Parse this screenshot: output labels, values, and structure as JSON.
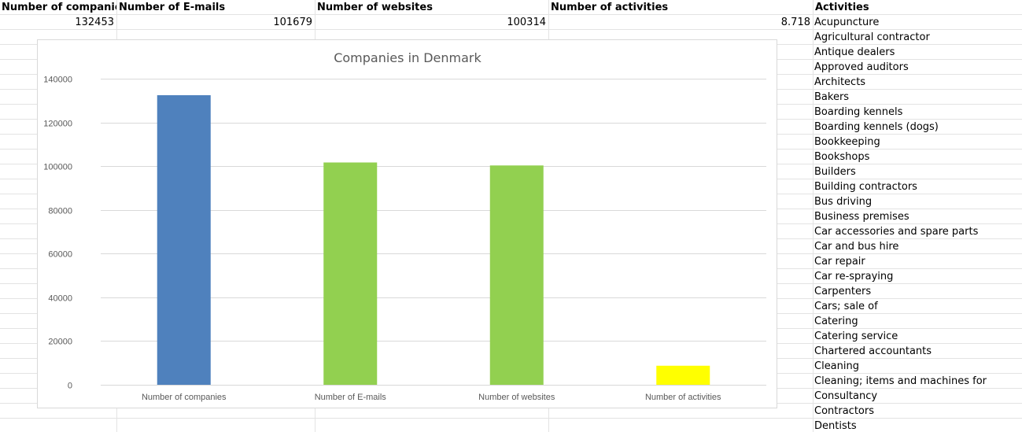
{
  "sheet": {
    "headers": [
      "Number of companies",
      "Number of E-mails",
      "Number of websites",
      "Number of activities",
      "Activities"
    ],
    "values": [
      "132453",
      "101679",
      "100314",
      "8.718"
    ],
    "activities": [
      "Acupuncture",
      "Agricultural contractor",
      "Antique dealers",
      "Approved auditors",
      "Architects",
      "Bakers",
      "Boarding kennels",
      "Boarding kennels (dogs)",
      "Bookkeeping",
      "Bookshops",
      "Builders",
      "Building contractors",
      "Bus driving",
      "Business premises",
      "Car accessories and spare parts",
      "Car and bus hire",
      "Car repair",
      "Car re-spraying",
      "Carpenters",
      "Cars; sale of",
      "Catering",
      "Catering service",
      "Chartered accountants",
      "Cleaning",
      "Cleaning; items and machines for",
      "Consultancy",
      "Contractors",
      "Dentists"
    ]
  },
  "chart_data": {
    "type": "bar",
    "title": "Companies in Denmark",
    "xlabel": "",
    "ylabel": "",
    "categories": [
      "Number of companies",
      "Number of E-mails",
      "Number of websites",
      "Number of activities"
    ],
    "values": [
      132453,
      101679,
      100314,
      8718
    ],
    "ylim": [
      0,
      140000
    ],
    "yticks": [
      0,
      20000,
      40000,
      60000,
      80000,
      100000,
      120000,
      140000
    ],
    "bar_colors": [
      "#4f81bd",
      "#92d050",
      "#92d050",
      "#ffff00"
    ],
    "grid": true,
    "legend": "none"
  }
}
